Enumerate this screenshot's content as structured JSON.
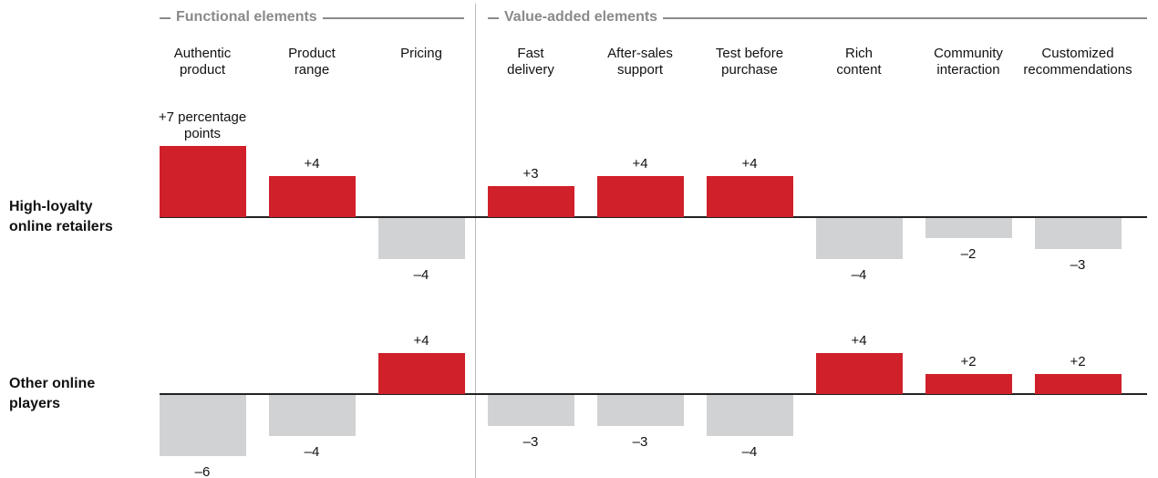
{
  "chart_data": {
    "type": "bar",
    "groups": [
      {
        "name": "Functional elements",
        "count": 3
      },
      {
        "name": "Value-added elements",
        "count": 6
      }
    ],
    "categories": [
      [
        "Authentic",
        "product"
      ],
      [
        "Product",
        "range"
      ],
      [
        "Pricing"
      ],
      [
        "Fast",
        "delivery"
      ],
      [
        "After-sales",
        "support"
      ],
      [
        "Test before",
        "purchase"
      ],
      [
        "Rich",
        "content"
      ],
      [
        "Community",
        "interaction"
      ],
      [
        "Customized",
        "recommendations"
      ]
    ],
    "positive_color": "#d0202a",
    "negative_color": "#d1d2d4",
    "series": [
      {
        "name": "High-loyalty online retailers",
        "values": [
          7,
          4,
          -4,
          3,
          4,
          4,
          -4,
          -2,
          -3
        ],
        "value_labels": [
          "+7 percentage points",
          "+4",
          "–4",
          "+3",
          "+4",
          "+4",
          "–4",
          "–2",
          "–3"
        ]
      },
      {
        "name": "Other online players",
        "values": [
          -6,
          -4,
          4,
          -3,
          -3,
          -4,
          4,
          2,
          2
        ],
        "value_labels": [
          "–6",
          "–4",
          "+4",
          "–3",
          "–3",
          "–4",
          "+4",
          "+2",
          "+2"
        ]
      }
    ]
  }
}
